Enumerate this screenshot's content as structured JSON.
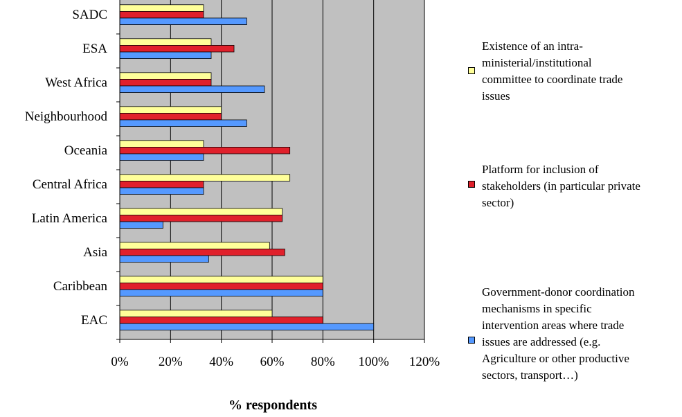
{
  "chart_data": {
    "type": "bar",
    "orientation": "horizontal",
    "categories": [
      "SADC",
      "ESA",
      "West Africa",
      "Neighbourhood",
      "Oceania",
      "Central Africa",
      "Latin America",
      "Asia",
      "Caribbean",
      "EAC"
    ],
    "series": [
      {
        "name": "Existence of an intra-ministerial/institutional committee to coordinate trade issues",
        "color": "#ffff99",
        "values": [
          33,
          36,
          36,
          40,
          33,
          67,
          64,
          59,
          80,
          60
        ]
      },
      {
        "name": "Platform for inclusion of stakeholders (in particular private sector)",
        "color": "#e0202b",
        "values": [
          33,
          45,
          36,
          40,
          67,
          33,
          64,
          65,
          80,
          80
        ]
      },
      {
        "name": "Government-donor coordination mechanisms in specific intervention areas where trade issues are addressed (e.g. Agriculture or other productive sectors, transport…)",
        "color": "#5599ff",
        "values": [
          50,
          36,
          57,
          50,
          33,
          33,
          17,
          35,
          80,
          100
        ]
      }
    ],
    "xlim": [
      0,
      120
    ],
    "xticks": [
      "0%",
      "20%",
      "40%",
      "60%",
      "80%",
      "100%",
      "120%"
    ],
    "xlabel": "% respondents",
    "plot_background": "#c0c0c0",
    "grid": true,
    "legend_position": "right"
  },
  "legend": {
    "items": [
      {
        "lines": [
          "Existence of an intra-",
          "ministerial/institutional",
          "committee to coordinate trade",
          "issues"
        ],
        "color": "#ffff99"
      },
      {
        "lines": [
          "Platform for inclusion of",
          "stakeholders (in particular private",
          "sector)"
        ],
        "color": "#e0202b"
      },
      {
        "lines": [
          "Government-donor coordination",
          "mechanisms in specific",
          "intervention areas where trade",
          "issues are addressed (e.g.",
          "Agriculture or other productive",
          "sectors, transport…)"
        ],
        "color": "#5599ff"
      }
    ]
  }
}
